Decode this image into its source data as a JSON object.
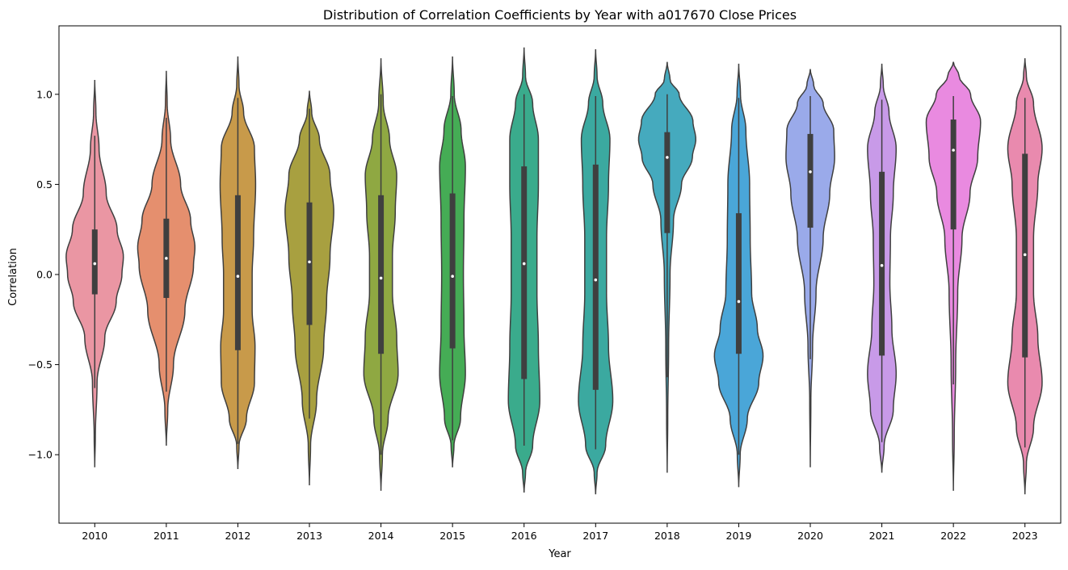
{
  "chart_data": {
    "type": "violin",
    "title": "Distribution of Correlation Coefficients by Year with a017670 Close Prices",
    "xlabel": "Year",
    "ylabel": "Correlation",
    "ylim": [
      -1.38,
      1.38
    ],
    "yticks": [
      1.0,
      0.5,
      0.0,
      -0.5,
      -1.0
    ],
    "ytick_labels": [
      "1.0",
      "0.5",
      "0.0",
      "−0.5",
      "−1.0"
    ],
    "categories": [
      "2010",
      "2011",
      "2012",
      "2013",
      "2014",
      "2015",
      "2016",
      "2017",
      "2018",
      "2019",
      "2020",
      "2021",
      "2022",
      "2023"
    ],
    "violins": [
      {
        "year": "2010",
        "color": "#ea96a3",
        "median": 0.06,
        "q1": -0.11,
        "q3": 0.25,
        "whisker_low": -0.63,
        "whisker_high": 0.77,
        "kde_min": -1.07,
        "kde_max": 1.08,
        "density": [
          [
            -1.07,
            0.0
          ],
          [
            -0.9,
            0.02
          ],
          [
            -0.6,
            0.08
          ],
          [
            -0.35,
            0.35
          ],
          [
            -0.15,
            0.75
          ],
          [
            0.0,
            0.95
          ],
          [
            0.1,
            1.0
          ],
          [
            0.25,
            0.78
          ],
          [
            0.45,
            0.4
          ],
          [
            0.7,
            0.15
          ],
          [
            0.9,
            0.04
          ],
          [
            1.08,
            0.0
          ]
        ]
      },
      {
        "year": "2011",
        "color": "#e58f6e",
        "median": 0.09,
        "q1": -0.13,
        "q3": 0.31,
        "whisker_low": -0.65,
        "whisker_high": 0.87,
        "kde_min": -0.95,
        "kde_max": 1.13,
        "density": [
          [
            -0.95,
            0.0
          ],
          [
            -0.75,
            0.05
          ],
          [
            -0.5,
            0.25
          ],
          [
            -0.2,
            0.65
          ],
          [
            0.05,
            0.95
          ],
          [
            0.15,
            1.0
          ],
          [
            0.3,
            0.85
          ],
          [
            0.5,
            0.5
          ],
          [
            0.75,
            0.15
          ],
          [
            0.95,
            0.03
          ],
          [
            1.13,
            0.0
          ]
        ]
      },
      {
        "year": "2012",
        "color": "#c89a4a",
        "median": -0.01,
        "q1": -0.42,
        "q3": 0.44,
        "whisker_low": -0.94,
        "whisker_high": 0.98,
        "kde_min": -1.08,
        "kde_max": 1.21,
        "density": [
          [
            -1.08,
            0.0
          ],
          [
            -0.95,
            0.04
          ],
          [
            -0.8,
            0.3
          ],
          [
            -0.6,
            0.58
          ],
          [
            -0.4,
            0.6
          ],
          [
            -0.2,
            0.5
          ],
          [
            0.0,
            0.5
          ],
          [
            0.2,
            0.55
          ],
          [
            0.5,
            0.62
          ],
          [
            0.7,
            0.58
          ],
          [
            0.9,
            0.2
          ],
          [
            1.05,
            0.04
          ],
          [
            1.21,
            0.0
          ]
        ]
      },
      {
        "year": "2013",
        "color": "#a8a040",
        "median": 0.07,
        "q1": -0.28,
        "q3": 0.4,
        "whisker_low": -0.8,
        "whisker_high": 0.92,
        "kde_min": -1.17,
        "kde_max": 1.02,
        "density": [
          [
            -1.17,
            0.0
          ],
          [
            -0.95,
            0.04
          ],
          [
            -0.7,
            0.25
          ],
          [
            -0.4,
            0.5
          ],
          [
            -0.15,
            0.6
          ],
          [
            0.1,
            0.72
          ],
          [
            0.35,
            0.85
          ],
          [
            0.55,
            0.72
          ],
          [
            0.75,
            0.35
          ],
          [
            0.9,
            0.08
          ],
          [
            1.02,
            0.0
          ]
        ]
      },
      {
        "year": "2014",
        "color": "#8fa842",
        "median": -0.02,
        "q1": -0.44,
        "q3": 0.44,
        "whisker_low": -1.0,
        "whisker_high": 1.0,
        "kde_min": -1.2,
        "kde_max": 1.2,
        "density": [
          [
            -1.2,
            0.0
          ],
          [
            -1.0,
            0.05
          ],
          [
            -0.8,
            0.25
          ],
          [
            -0.55,
            0.6
          ],
          [
            -0.35,
            0.55
          ],
          [
            -0.1,
            0.4
          ],
          [
            0.1,
            0.4
          ],
          [
            0.35,
            0.5
          ],
          [
            0.55,
            0.55
          ],
          [
            0.75,
            0.3
          ],
          [
            0.95,
            0.08
          ],
          [
            1.2,
            0.0
          ]
        ]
      },
      {
        "year": "2015",
        "color": "#45ac55",
        "median": -0.01,
        "q1": -0.41,
        "q3": 0.45,
        "whisker_low": -0.92,
        "whisker_high": 0.99,
        "kde_min": -1.07,
        "kde_max": 1.21,
        "density": [
          [
            -1.07,
            0.0
          ],
          [
            -0.95,
            0.05
          ],
          [
            -0.8,
            0.28
          ],
          [
            -0.55,
            0.45
          ],
          [
            -0.3,
            0.4
          ],
          [
            0.0,
            0.38
          ],
          [
            0.3,
            0.4
          ],
          [
            0.6,
            0.45
          ],
          [
            0.8,
            0.3
          ],
          [
            1.0,
            0.06
          ],
          [
            1.21,
            0.0
          ]
        ]
      },
      {
        "year": "2016",
        "color": "#3aab8c",
        "median": 0.06,
        "q1": -0.58,
        "q3": 0.6,
        "whisker_low": -0.95,
        "whisker_high": 1.0,
        "kde_min": -1.21,
        "kde_max": 1.26,
        "density": [
          [
            -1.21,
            0.0
          ],
          [
            -1.1,
            0.05
          ],
          [
            -0.95,
            0.3
          ],
          [
            -0.7,
            0.55
          ],
          [
            -0.4,
            0.5
          ],
          [
            -0.1,
            0.45
          ],
          [
            0.2,
            0.45
          ],
          [
            0.5,
            0.5
          ],
          [
            0.75,
            0.5
          ],
          [
            0.95,
            0.3
          ],
          [
            1.1,
            0.05
          ],
          [
            1.26,
            0.0
          ]
        ]
      },
      {
        "year": "2017",
        "color": "#3ba9a0",
        "median": -0.03,
        "q1": -0.64,
        "q3": 0.61,
        "whisker_low": -0.97,
        "whisker_high": 0.99,
        "kde_min": -1.22,
        "kde_max": 1.25,
        "density": [
          [
            -1.22,
            0.0
          ],
          [
            -1.1,
            0.05
          ],
          [
            -0.95,
            0.35
          ],
          [
            -0.7,
            0.6
          ],
          [
            -0.4,
            0.45
          ],
          [
            -0.1,
            0.38
          ],
          [
            0.2,
            0.38
          ],
          [
            0.5,
            0.45
          ],
          [
            0.75,
            0.5
          ],
          [
            0.95,
            0.25
          ],
          [
            1.1,
            0.05
          ],
          [
            1.25,
            0.0
          ]
        ]
      },
      {
        "year": "2018",
        "color": "#45aabe",
        "median": 0.65,
        "q1": 0.23,
        "q3": 0.79,
        "whisker_low": -0.57,
        "whisker_high": 1.0,
        "kde_min": -1.1,
        "kde_max": 1.18,
        "density": [
          [
            -1.1,
            0.0
          ],
          [
            -0.8,
            0.02
          ],
          [
            -0.4,
            0.05
          ],
          [
            0.0,
            0.1
          ],
          [
            0.3,
            0.22
          ],
          [
            0.5,
            0.5
          ],
          [
            0.65,
            0.88
          ],
          [
            0.75,
            1.0
          ],
          [
            0.85,
            0.9
          ],
          [
            1.0,
            0.42
          ],
          [
            1.08,
            0.1
          ],
          [
            1.18,
            0.0
          ]
        ]
      },
      {
        "year": "2019",
        "color": "#4aa6d8",
        "median": -0.15,
        "q1": -0.44,
        "q3": 0.34,
        "whisker_low": -1.0,
        "whisker_high": 0.98,
        "kde_min": -1.18,
        "kde_max": 1.17,
        "density": [
          [
            -1.18,
            0.0
          ],
          [
            -1.0,
            0.05
          ],
          [
            -0.8,
            0.3
          ],
          [
            -0.6,
            0.7
          ],
          [
            -0.45,
            0.85
          ],
          [
            -0.3,
            0.65
          ],
          [
            -0.1,
            0.45
          ],
          [
            0.2,
            0.4
          ],
          [
            0.5,
            0.38
          ],
          [
            0.8,
            0.25
          ],
          [
            1.0,
            0.06
          ],
          [
            1.17,
            0.0
          ]
        ]
      },
      {
        "year": "2020",
        "color": "#9aaaea",
        "median": 0.57,
        "q1": 0.26,
        "q3": 0.78,
        "whisker_low": -0.47,
        "whisker_high": 0.99,
        "kde_min": -1.07,
        "kde_max": 1.14,
        "density": [
          [
            -1.07,
            0.0
          ],
          [
            -0.7,
            0.02
          ],
          [
            -0.4,
            0.08
          ],
          [
            -0.1,
            0.2
          ],
          [
            0.2,
            0.45
          ],
          [
            0.45,
            0.68
          ],
          [
            0.65,
            0.85
          ],
          [
            0.8,
            0.82
          ],
          [
            0.95,
            0.45
          ],
          [
            1.05,
            0.12
          ],
          [
            1.14,
            0.0
          ]
        ]
      },
      {
        "year": "2021",
        "color": "#c89ae8",
        "median": 0.05,
        "q1": -0.45,
        "q3": 0.57,
        "whisker_low": -0.93,
        "whisker_high": 0.97,
        "kde_min": -1.1,
        "kde_max": 1.17,
        "density": [
          [
            -1.1,
            0.0
          ],
          [
            -0.95,
            0.08
          ],
          [
            -0.75,
            0.4
          ],
          [
            -0.55,
            0.5
          ],
          [
            -0.3,
            0.35
          ],
          [
            -0.05,
            0.28
          ],
          [
            0.2,
            0.3
          ],
          [
            0.45,
            0.4
          ],
          [
            0.7,
            0.5
          ],
          [
            0.9,
            0.25
          ],
          [
            1.05,
            0.05
          ],
          [
            1.17,
            0.0
          ]
        ]
      },
      {
        "year": "2022",
        "color": "#e98ae0",
        "median": 0.69,
        "q1": 0.25,
        "q3": 0.86,
        "whisker_low": -0.61,
        "whisker_high": 0.99,
        "kde_min": -1.2,
        "kde_max": 1.18,
        "density": [
          [
            -1.2,
            0.0
          ],
          [
            -0.9,
            0.03
          ],
          [
            -0.5,
            0.08
          ],
          [
            -0.1,
            0.15
          ],
          [
            0.2,
            0.3
          ],
          [
            0.45,
            0.58
          ],
          [
            0.65,
            0.85
          ],
          [
            0.85,
            0.95
          ],
          [
            1.0,
            0.6
          ],
          [
            1.1,
            0.2
          ],
          [
            1.18,
            0.0
          ]
        ]
      },
      {
        "year": "2023",
        "color": "#e98aae",
        "median": 0.11,
        "q1": -0.46,
        "q3": 0.67,
        "whisker_low": -0.96,
        "whisker_high": 0.98,
        "kde_min": -1.22,
        "kde_max": 1.2,
        "density": [
          [
            -1.22,
            0.0
          ],
          [
            -1.05,
            0.05
          ],
          [
            -0.85,
            0.3
          ],
          [
            -0.6,
            0.6
          ],
          [
            -0.35,
            0.45
          ],
          [
            -0.1,
            0.3
          ],
          [
            0.2,
            0.3
          ],
          [
            0.5,
            0.45
          ],
          [
            0.7,
            0.6
          ],
          [
            0.95,
            0.3
          ],
          [
            1.1,
            0.05
          ],
          [
            1.2,
            0.0
          ]
        ]
      }
    ]
  }
}
